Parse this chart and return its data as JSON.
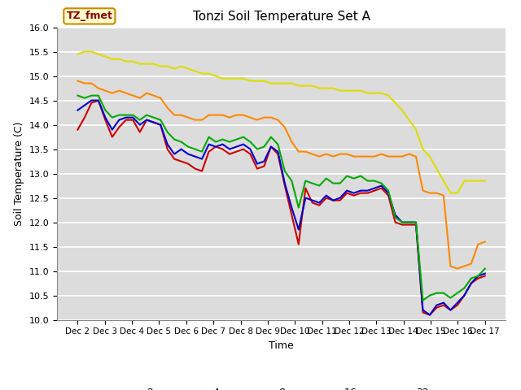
{
  "title": "Tonzi Soil Temperature Set A",
  "xlabel": "Time",
  "ylabel": "Soil Temperature (C)",
  "ylim": [
    10.0,
    16.0
  ],
  "yticks": [
    10.0,
    10.5,
    11.0,
    11.5,
    12.0,
    12.5,
    13.0,
    13.5,
    14.0,
    14.5,
    15.0,
    15.5,
    16.0
  ],
  "xtick_labels": [
    "Dec 2",
    "Dec 3",
    "Dec 4",
    "Dec 5",
    "Dec 6",
    "Dec 7",
    "Dec 8",
    "Dec 9",
    "Dec 10",
    "Dec 11",
    "Dec 12",
    "Dec 13",
    "Dec 14",
    "Dec 15",
    "Dec 16",
    "Dec 17"
  ],
  "colors": {
    "2cm": "#cc0000",
    "4cm": "#0000cc",
    "8cm": "#00aa00",
    "16cm": "#ff8800",
    "32cm": "#dddd00"
  },
  "legend_label": "TZ_fmet",
  "bg_color": "#dcdcdc",
  "series": {
    "2cm": [
      13.9,
      14.15,
      14.45,
      14.5,
      14.1,
      13.75,
      13.95,
      14.1,
      14.1,
      13.85,
      14.1,
      14.05,
      14.0,
      13.5,
      13.3,
      13.25,
      13.2,
      13.1,
      13.05,
      13.45,
      13.55,
      13.5,
      13.4,
      13.45,
      13.5,
      13.4,
      13.1,
      13.15,
      13.55,
      13.4,
      12.75,
      12.15,
      11.55,
      12.7,
      12.4,
      12.35,
      12.5,
      12.45,
      12.45,
      12.6,
      12.55,
      12.6,
      12.6,
      12.65,
      12.7,
      12.55,
      12.0,
      11.95,
      11.95,
      11.95,
      10.15,
      10.1,
      10.25,
      10.3,
      10.2,
      10.3,
      10.5,
      10.75,
      10.85,
      10.9
    ],
    "4cm": [
      14.3,
      14.4,
      14.5,
      14.5,
      14.15,
      13.9,
      14.1,
      14.15,
      14.15,
      14.0,
      14.1,
      14.05,
      14.0,
      13.6,
      13.4,
      13.5,
      13.4,
      13.35,
      13.3,
      13.6,
      13.55,
      13.6,
      13.5,
      13.55,
      13.6,
      13.5,
      13.2,
      13.25,
      13.55,
      13.45,
      12.8,
      12.3,
      11.85,
      12.5,
      12.45,
      12.4,
      12.55,
      12.45,
      12.5,
      12.65,
      12.6,
      12.65,
      12.65,
      12.7,
      12.75,
      12.6,
      12.15,
      12.0,
      12.0,
      12.0,
      10.2,
      10.1,
      10.3,
      10.35,
      10.2,
      10.35,
      10.5,
      10.75,
      10.9,
      10.95
    ],
    "8cm": [
      14.6,
      14.55,
      14.6,
      14.6,
      14.3,
      14.15,
      14.2,
      14.2,
      14.2,
      14.1,
      14.2,
      14.15,
      14.1,
      13.85,
      13.7,
      13.65,
      13.55,
      13.5,
      13.45,
      13.75,
      13.65,
      13.7,
      13.65,
      13.7,
      13.75,
      13.65,
      13.5,
      13.55,
      13.75,
      13.6,
      13.05,
      12.85,
      12.3,
      12.85,
      12.8,
      12.75,
      12.9,
      12.8,
      12.8,
      12.95,
      12.9,
      12.95,
      12.85,
      12.85,
      12.8,
      12.65,
      12.1,
      12.0,
      12.0,
      12.0,
      10.4,
      10.5,
      10.55,
      10.55,
      10.45,
      10.55,
      10.65,
      10.85,
      10.9,
      11.05
    ],
    "16cm": [
      14.9,
      14.85,
      14.85,
      14.75,
      14.7,
      14.65,
      14.7,
      14.65,
      14.6,
      14.55,
      14.65,
      14.6,
      14.55,
      14.35,
      14.2,
      14.2,
      14.15,
      14.1,
      14.1,
      14.2,
      14.2,
      14.2,
      14.15,
      14.2,
      14.2,
      14.15,
      14.1,
      14.15,
      14.15,
      14.1,
      13.95,
      13.65,
      13.45,
      13.45,
      13.4,
      13.35,
      13.4,
      13.35,
      13.4,
      13.4,
      13.35,
      13.35,
      13.35,
      13.35,
      13.4,
      13.35,
      13.35,
      13.35,
      13.4,
      13.35,
      12.65,
      12.6,
      12.6,
      12.55,
      11.1,
      11.05,
      11.1,
      11.15,
      11.55,
      11.6
    ],
    "32cm": [
      15.45,
      15.5,
      15.5,
      15.45,
      15.4,
      15.35,
      15.35,
      15.3,
      15.3,
      15.25,
      15.25,
      15.25,
      15.2,
      15.2,
      15.15,
      15.2,
      15.15,
      15.1,
      15.05,
      15.05,
      15.0,
      14.95,
      14.95,
      14.95,
      14.95,
      14.9,
      14.9,
      14.9,
      14.85,
      14.85,
      14.85,
      14.85,
      14.8,
      14.8,
      14.8,
      14.75,
      14.75,
      14.75,
      14.7,
      14.7,
      14.7,
      14.7,
      14.65,
      14.65,
      14.65,
      14.6,
      14.45,
      14.3,
      14.1,
      13.9,
      13.5,
      13.35,
      13.1,
      12.85,
      12.6,
      12.6,
      12.85,
      12.85,
      12.85,
      12.85
    ]
  }
}
